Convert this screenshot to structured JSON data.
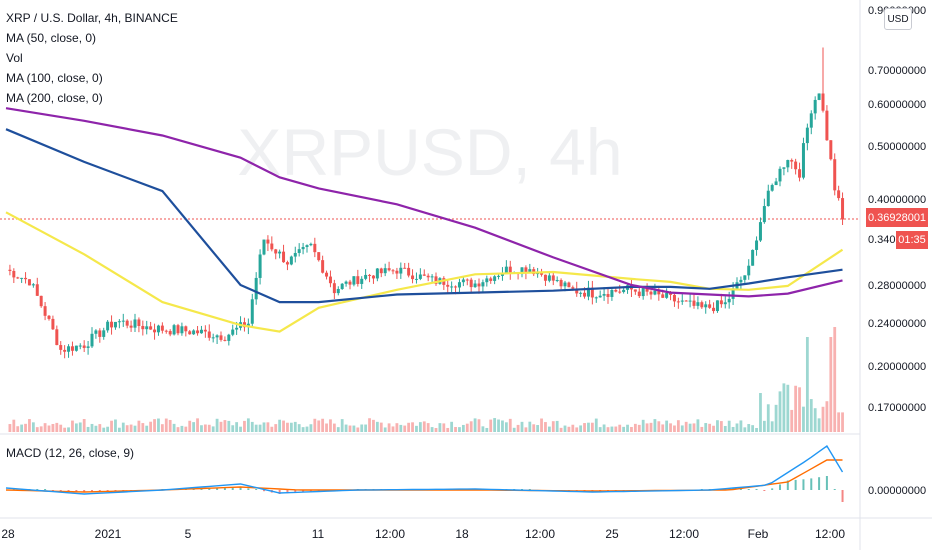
{
  "legend": {
    "symbol": "XRP / U.S. Dollar, 4h, BINANCE",
    "ma50": "MA (50, close, 0)",
    "vol": "Vol",
    "ma100": "MA (100, close, 0)",
    "ma200": "MA (200, close, 0)"
  },
  "macd_label": "MACD (12, 26, close, 9)",
  "watermark": "XRPUSD, 4h",
  "currency_badge": "USD",
  "last_price_label": "0.36928001",
  "countdown": "01:35",
  "colors": {
    "up": "#26a69a",
    "down": "#ef5350",
    "ma50": "#f5e84b",
    "ma100": "#1e4f9c",
    "ma200": "#8e24aa",
    "macd": "#2196f3",
    "signal": "#ff6d00"
  },
  "chart_data": {
    "type": "candlestick",
    "interval": "4h",
    "y_tick_labels": [
      "0.90000000",
      "0.70000000",
      "0.60000000",
      "0.50000000",
      "0.40000000",
      "0.34000000",
      "0.28000000",
      "0.24000000",
      "0.20000000",
      "0.17000000"
    ],
    "x_tick_labels": [
      "28",
      "2021",
      "5",
      "11",
      "12:00",
      "18",
      "12:00",
      "25",
      "12:00",
      "Feb",
      "12:00"
    ],
    "macd_tick_labels": [
      "0.00000000"
    ],
    "last_price": 0.36928001,
    "price_range_shown": [
      0.15,
      0.9
    ],
    "trend": [
      {
        "x": 0,
        "close": 0.3
      },
      {
        "x": 6,
        "close": 0.285
      },
      {
        "x": 14,
        "close": 0.215
      },
      {
        "x": 20,
        "close": 0.22
      },
      {
        "x": 28,
        "close": 0.242
      },
      {
        "x": 38,
        "close": 0.235
      },
      {
        "x": 48,
        "close": 0.232
      },
      {
        "x": 56,
        "close": 0.228
      },
      {
        "x": 62,
        "close": 0.24
      },
      {
        "x": 66,
        "close": 0.34
      },
      {
        "x": 72,
        "close": 0.31
      },
      {
        "x": 78,
        "close": 0.33
      },
      {
        "x": 84,
        "close": 0.275
      },
      {
        "x": 92,
        "close": 0.292
      },
      {
        "x": 100,
        "close": 0.3
      },
      {
        "x": 110,
        "close": 0.285
      },
      {
        "x": 120,
        "close": 0.282
      },
      {
        "x": 128,
        "close": 0.3
      },
      {
        "x": 134,
        "close": 0.302
      },
      {
        "x": 138,
        "close": 0.292
      },
      {
        "x": 144,
        "close": 0.275
      },
      {
        "x": 150,
        "close": 0.272
      },
      {
        "x": 160,
        "close": 0.275
      },
      {
        "x": 170,
        "close": 0.265
      },
      {
        "x": 178,
        "close": 0.255
      },
      {
        "x": 184,
        "close": 0.26
      },
      {
        "x": 190,
        "close": 0.3
      },
      {
        "x": 194,
        "close": 0.39
      },
      {
        "x": 197,
        "close": 0.44
      },
      {
        "x": 200,
        "close": 0.48
      },
      {
        "x": 203,
        "close": 0.45
      },
      {
        "x": 206,
        "close": 0.59
      },
      {
        "x": 208,
        "close": 0.64
      },
      {
        "x": 210,
        "close": 0.52
      },
      {
        "x": 212,
        "close": 0.42
      },
      {
        "x": 214,
        "close": 0.369
      }
    ],
    "series": [
      {
        "name": "MA (50, close, 0)",
        "values": [
          0.38,
          0.32,
          0.262,
          0.238,
          0.232,
          0.256,
          0.275,
          0.294,
          0.297,
          0.288,
          0.284,
          0.276,
          0.275,
          0.279,
          0.326
        ]
      },
      {
        "name": "MA (100, close, 0)",
        "values": [
          0.54,
          0.47,
          0.415,
          0.28,
          0.262,
          0.262,
          0.27,
          0.272,
          0.274,
          0.278,
          0.278,
          0.276,
          0.282,
          0.29,
          0.3
        ]
      },
      {
        "name": "MA (200, close, 0)",
        "values": [
          0.59,
          0.56,
          0.525,
          0.478,
          0.441,
          0.42,
          0.392,
          0.357,
          0.316,
          0.28,
          0.272,
          0.27,
          0.268,
          0.271,
          0.286
        ]
      }
    ],
    "series_x": [
      0,
      20,
      40,
      60,
      70,
      80,
      100,
      120,
      140,
      160,
      170,
      180,
      190,
      200,
      214
    ]
  }
}
